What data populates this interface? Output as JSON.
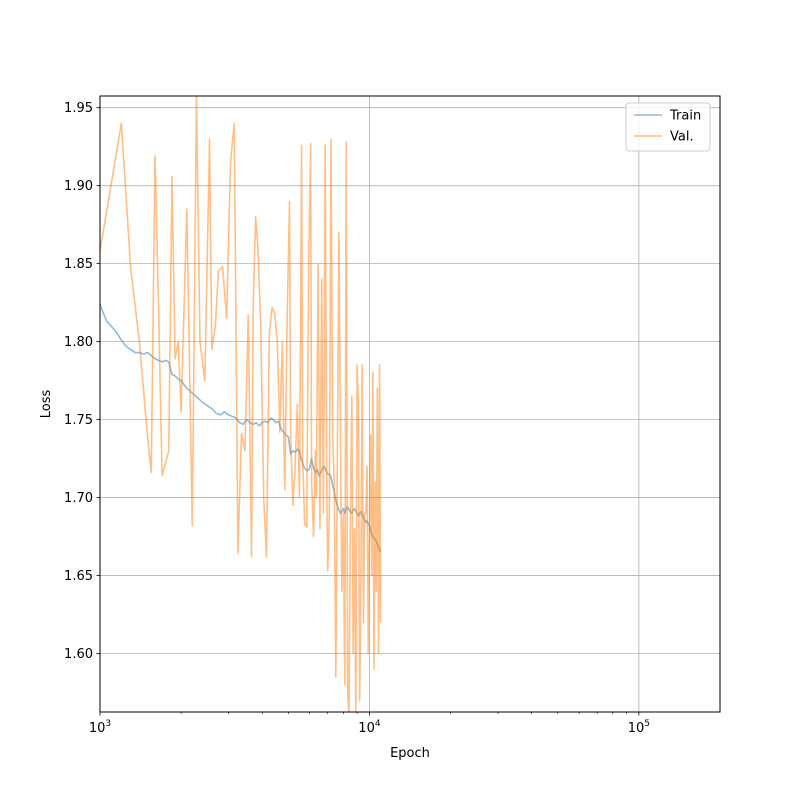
{
  "chart_data": {
    "type": "line",
    "title": "",
    "xlabel": "Epoch",
    "ylabel": "Loss",
    "xscale": "log",
    "xlim": [
      1000,
      200000
    ],
    "ylim": [
      1.5625,
      1.9575
    ],
    "grid": true,
    "legend_position": "top-right",
    "x_ticks": [
      {
        "value": 1000,
        "base": "10",
        "exp": "3"
      },
      {
        "value": 10000,
        "base": "10",
        "exp": "4"
      },
      {
        "value": 100000,
        "base": "10",
        "exp": "5"
      }
    ],
    "y_ticks": [
      {
        "value": 1.6,
        "label": "1.60"
      },
      {
        "value": 1.65,
        "label": "1.65"
      },
      {
        "value": 1.7,
        "label": "1.70"
      },
      {
        "value": 1.75,
        "label": "1.75"
      },
      {
        "value": 1.8,
        "label": "1.80"
      },
      {
        "value": 1.85,
        "label": "1.85"
      },
      {
        "value": 1.9,
        "label": "1.90"
      },
      {
        "value": 1.95,
        "label": "1.95"
      }
    ],
    "series": [
      {
        "name": "Train",
        "color": "#1f77b4",
        "opacity": 0.5,
        "x": [
          1000,
          1030,
          1060,
          1100,
          1150,
          1200,
          1250,
          1300,
          1350,
          1400,
          1450,
          1500,
          1550,
          1600,
          1650,
          1700,
          1750,
          1800,
          1850,
          1900,
          1950,
          2000,
          2100,
          2200,
          2300,
          2400,
          2500,
          2600,
          2700,
          2800,
          2900,
          3000,
          3100,
          3200,
          3300,
          3400,
          3500,
          3600,
          3700,
          3800,
          3900,
          4000,
          4100,
          4200,
          4300,
          4400,
          4500,
          4600,
          4700,
          4800,
          4900,
          5000,
          5100,
          5200,
          5300,
          5400,
          5500,
          5600,
          5700,
          5800,
          5900,
          6000,
          6100,
          6200,
          6300,
          6400,
          6500,
          6600,
          6700,
          6800,
          6900,
          7000,
          7100,
          7200,
          7300,
          7400,
          7500,
          7600,
          7700,
          7800,
          7900,
          8000,
          8100,
          8200,
          8300,
          8400,
          8500,
          8600,
          8700,
          8800,
          8900,
          9000,
          9100,
          9200,
          9300,
          9400,
          9500,
          9600,
          9700,
          9800,
          9900,
          10000,
          10200,
          10400,
          10600,
          10800,
          11000
        ],
        "y": [
          1.824,
          1.818,
          1.813,
          1.81,
          1.806,
          1.801,
          1.797,
          1.795,
          1.793,
          1.793,
          1.792,
          1.793,
          1.791,
          1.789,
          1.788,
          1.787,
          1.788,
          1.787,
          1.779,
          1.778,
          1.776,
          1.775,
          1.77,
          1.767,
          1.764,
          1.761,
          1.759,
          1.757,
          1.754,
          1.753,
          1.755,
          1.753,
          1.752,
          1.751,
          1.748,
          1.747,
          1.75,
          1.748,
          1.747,
          1.748,
          1.746,
          1.748,
          1.749,
          1.748,
          1.751,
          1.75,
          1.748,
          1.749,
          1.744,
          1.742,
          1.74,
          1.739,
          1.728,
          1.73,
          1.729,
          1.731,
          1.73,
          1.724,
          1.72,
          1.718,
          1.717,
          1.719,
          1.725,
          1.719,
          1.716,
          1.718,
          1.714,
          1.716,
          1.719,
          1.72,
          1.717,
          1.715,
          1.715,
          1.713,
          1.708,
          1.704,
          1.698,
          1.695,
          1.692,
          1.69,
          1.691,
          1.693,
          1.69,
          1.693,
          1.694,
          1.692,
          1.691,
          1.69,
          1.692,
          1.693,
          1.691,
          1.69,
          1.688,
          1.69,
          1.691,
          1.689,
          1.687,
          1.686,
          1.684,
          1.685,
          1.683,
          1.682,
          1.676,
          1.674,
          1.672,
          1.668,
          1.665
        ]
      },
      {
        "name": "Val.",
        "color": "#ff7f0e",
        "opacity": 0.5,
        "x": [
          1000,
          1200,
          1300,
          1400,
          1500,
          1550,
          1600,
          1650,
          1700,
          1800,
          1850,
          1900,
          1950,
          2000,
          2100,
          2200,
          2280,
          2350,
          2450,
          2550,
          2600,
          2680,
          2750,
          2850,
          2950,
          3050,
          3150,
          3250,
          3350,
          3450,
          3550,
          3650,
          3700,
          3780,
          3850,
          3950,
          4050,
          4150,
          4250,
          4350,
          4450,
          4550,
          4650,
          4750,
          4850,
          4950,
          5050,
          5100,
          5200,
          5300,
          5400,
          5500,
          5600,
          5650,
          5750,
          5850,
          5950,
          6050,
          6100,
          6200,
          6300,
          6350,
          6450,
          6550,
          6650,
          6750,
          6850,
          6950,
          7000,
          7100,
          7200,
          7300,
          7400,
          7500,
          7600,
          7700,
          7800,
          7900,
          8000,
          8100,
          8200,
          8300,
          8400,
          8500,
          8600,
          8700,
          8800,
          8900,
          9000,
          9100,
          9200,
          9300,
          9400,
          9500,
          9600,
          9700,
          9800,
          9900,
          10000,
          10100,
          10200,
          10300,
          10400,
          10500,
          10600,
          10700,
          10800,
          10900,
          11000
        ],
        "y": [
          1.858,
          1.94,
          1.847,
          1.8,
          1.74,
          1.716,
          1.919,
          1.82,
          1.714,
          1.73,
          1.906,
          1.789,
          1.8,
          1.755,
          1.885,
          1.682,
          1.957,
          1.8,
          1.775,
          1.93,
          1.795,
          1.81,
          1.845,
          1.848,
          1.815,
          1.915,
          1.94,
          1.664,
          1.741,
          1.73,
          1.817,
          1.662,
          1.82,
          1.88,
          1.862,
          1.81,
          1.7,
          1.662,
          1.805,
          1.822,
          1.818,
          1.8,
          1.742,
          1.8,
          1.705,
          1.815,
          1.89,
          1.74,
          1.695,
          1.72,
          1.76,
          1.7,
          1.926,
          1.725,
          1.683,
          1.681,
          1.85,
          1.927,
          1.71,
          1.675,
          1.73,
          1.7,
          1.85,
          1.68,
          1.84,
          1.69,
          1.926,
          1.7,
          1.653,
          1.69,
          1.93,
          1.74,
          1.71,
          1.585,
          1.72,
          1.87,
          1.745,
          1.64,
          1.69,
          1.58,
          1.928,
          1.575,
          1.56,
          1.69,
          1.765,
          1.6,
          1.68,
          1.56,
          1.785,
          1.76,
          1.57,
          1.65,
          1.785,
          1.62,
          1.69,
          1.69,
          1.72,
          1.6,
          1.675,
          1.74,
          1.65,
          1.78,
          1.59,
          1.71,
          1.64,
          1.77,
          1.6,
          1.785,
          1.62
        ]
      }
    ]
  }
}
